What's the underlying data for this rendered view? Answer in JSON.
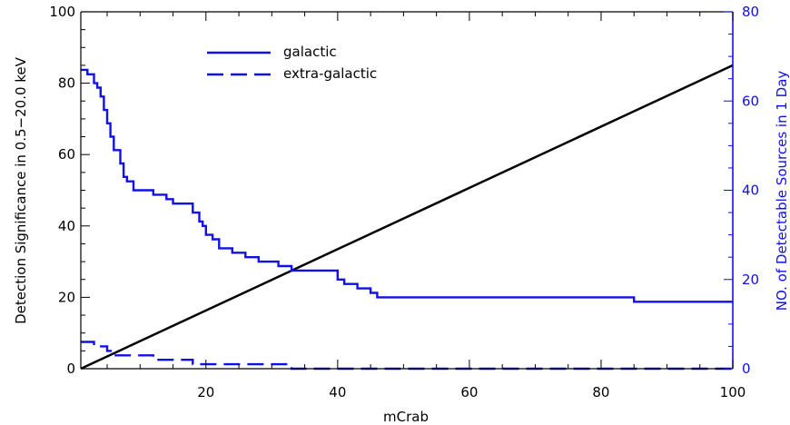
{
  "chart_data": {
    "type": "line",
    "title": "",
    "xlabel": "mCrab",
    "ylabel_left": "Detection Significance in 0.5−20.0 keV",
    "ylabel_right": "NO. of Detectable Sources in 1 Day",
    "xlim": [
      1,
      100
    ],
    "ylim_left": [
      0,
      100
    ],
    "ylim_right": [
      0,
      80
    ],
    "x_ticks": [
      20,
      40,
      60,
      80,
      100
    ],
    "y_left_ticks": [
      0,
      20,
      40,
      60,
      80,
      100
    ],
    "y_right_ticks": [
      0,
      20,
      40,
      60,
      80
    ],
    "grid": false,
    "legend_position": "top-center",
    "colors": {
      "axis_left": "#000000",
      "axis_right": "#1010e8",
      "significance": "#000000",
      "sources": "#1010e8"
    },
    "series": [
      {
        "axis": "left",
        "style": "solid",
        "color": "#000000",
        "x": [
          1,
          100
        ],
        "y": [
          0,
          85
        ]
      },
      {
        "name": "galactic",
        "axis": "right",
        "style": "solid",
        "color": "#1010e8",
        "x": [
          1,
          2,
          3,
          3.5,
          4,
          4.5,
          5,
          5.5,
          6,
          7,
          7.5,
          8,
          9,
          10,
          12,
          14,
          15,
          18,
          19,
          19.5,
          20,
          21,
          22,
          24,
          26,
          28,
          31,
          33,
          40,
          41,
          43,
          45,
          46,
          84,
          85,
          100
        ],
        "y": [
          67,
          66,
          64,
          63,
          61,
          58,
          55,
          52,
          49,
          46,
          43,
          42,
          40,
          40,
          39,
          38,
          37,
          35,
          33,
          32,
          30,
          29,
          27,
          26,
          25,
          24,
          23,
          22,
          20,
          19,
          18,
          17,
          16,
          16,
          15,
          15
        ]
      },
      {
        "name": "extra-galactic",
        "axis": "right",
        "style": "dashed",
        "color": "#1010e8",
        "x": [
          1,
          2,
          3,
          4,
          5,
          6,
          7,
          9,
          10,
          12,
          17,
          18,
          21,
          32,
          33,
          100
        ],
        "y": [
          6,
          6,
          5,
          5,
          4,
          3,
          3,
          3,
          3,
          2,
          2,
          1,
          1,
          1,
          0,
          0
        ]
      }
    ]
  }
}
